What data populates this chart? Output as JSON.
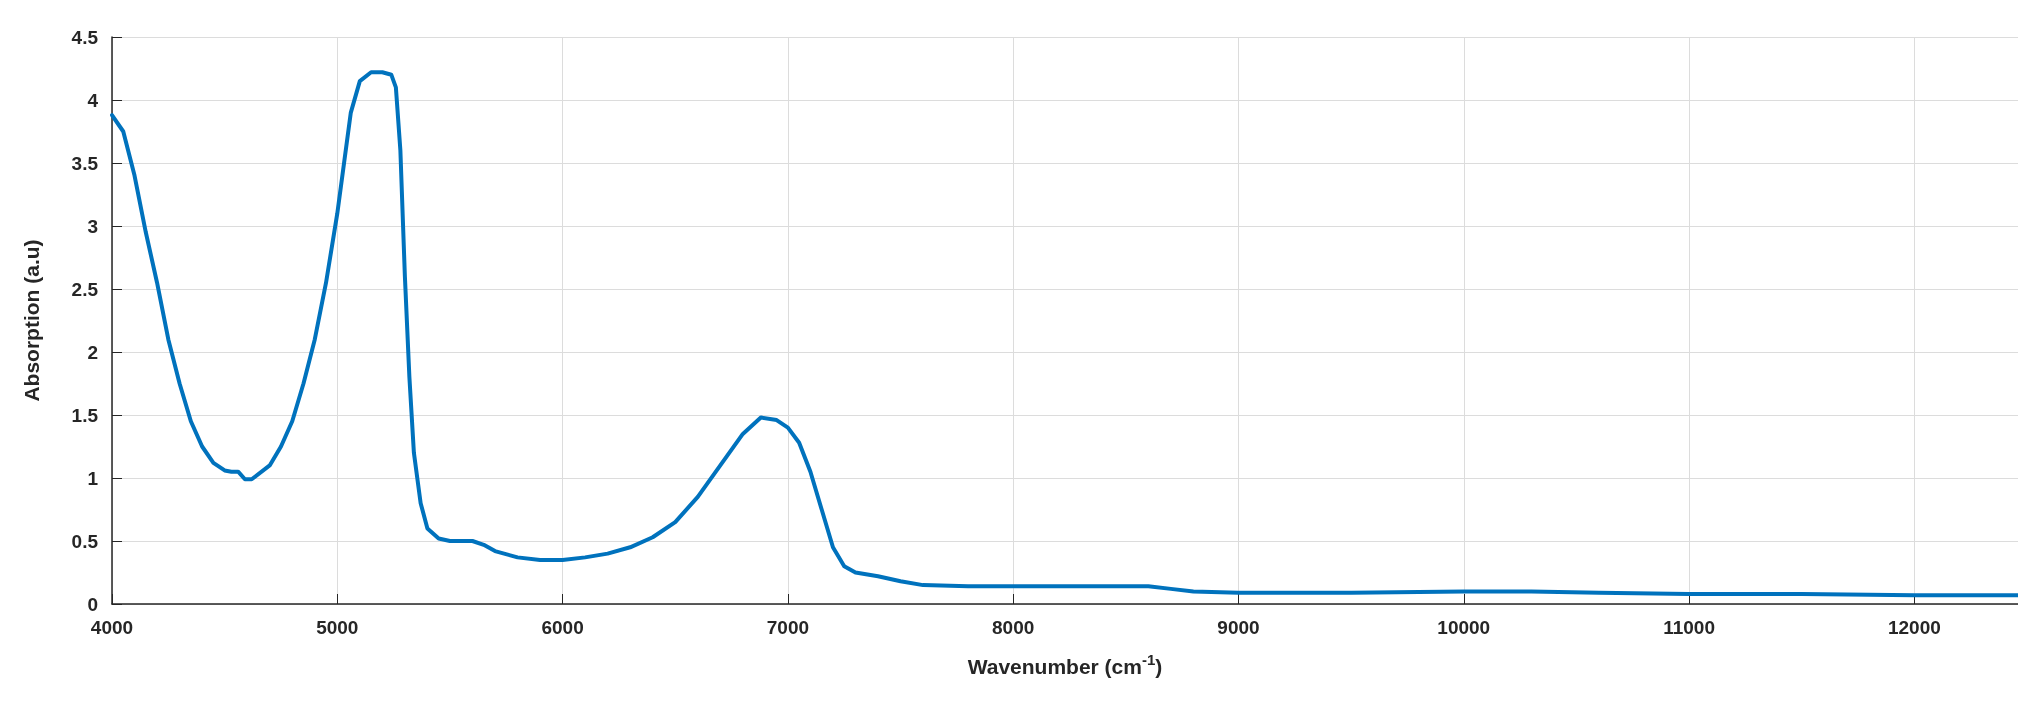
{
  "chart_data": {
    "type": "line",
    "xlabel": "Wavenumber (cm$^{-1}$)",
    "ylabel": "Absorption (a.u)",
    "x": [
      4000,
      4050,
      4100,
      4150,
      4200,
      4250,
      4300,
      4350,
      4400,
      4450,
      4500,
      4530,
      4560,
      4590,
      4620,
      4700,
      4750,
      4800,
      4850,
      4900,
      4950,
      5000,
      5030,
      5060,
      5100,
      5150,
      5200,
      5240,
      5260,
      5280,
      5300,
      5320,
      5340,
      5370,
      5400,
      5450,
      5500,
      5600,
      5650,
      5700,
      5800,
      5900,
      6000,
      6100,
      6200,
      6300,
      6400,
      6500,
      6600,
      6700,
      6800,
      6880,
      6950,
      7000,
      7050,
      7100,
      7150,
      7200,
      7250,
      7300,
      7400,
      7500,
      7600,
      7800,
      8000,
      8300,
      8600,
      8700,
      8800,
      9000,
      9500,
      10000,
      10300,
      10600,
      11000,
      11500,
      12000,
      12460
    ],
    "series": [
      {
        "color": "#0072bd",
        "values": [
          3.88,
          3.75,
          3.4,
          2.95,
          2.55,
          2.1,
          1.75,
          1.45,
          1.25,
          1.12,
          1.06,
          1.05,
          1.05,
          0.99,
          0.99,
          1.1,
          1.25,
          1.45,
          1.75,
          2.1,
          2.55,
          3.1,
          3.5,
          3.9,
          4.15,
          4.22,
          4.22,
          4.2,
          4.1,
          3.6,
          2.6,
          1.8,
          1.2,
          0.8,
          0.6,
          0.52,
          0.5,
          0.5,
          0.47,
          0.42,
          0.37,
          0.35,
          0.35,
          0.37,
          0.4,
          0.45,
          0.53,
          0.65,
          0.85,
          1.1,
          1.35,
          1.48,
          1.46,
          1.4,
          1.28,
          1.05,
          0.75,
          0.45,
          0.3,
          0.25,
          0.22,
          0.18,
          0.15,
          0.14,
          0.14,
          0.14,
          0.14,
          0.12,
          0.1,
          0.09,
          0.09,
          0.1,
          0.1,
          0.09,
          0.08,
          0.08,
          0.07,
          0.07
        ]
      }
    ],
    "xlim": [
      4000,
      12460
    ],
    "xticks": [
      4000,
      5000,
      6000,
      7000,
      8000,
      9000,
      10000,
      11000,
      12000
    ],
    "ylim": [
      0,
      4.5
    ],
    "yticks": [
      0,
      0.5,
      1,
      1.5,
      2,
      2.5,
      3,
      3.5,
      4,
      4.5
    ],
    "grid": true,
    "marker": "none",
    "line_style": "solid"
  }
}
